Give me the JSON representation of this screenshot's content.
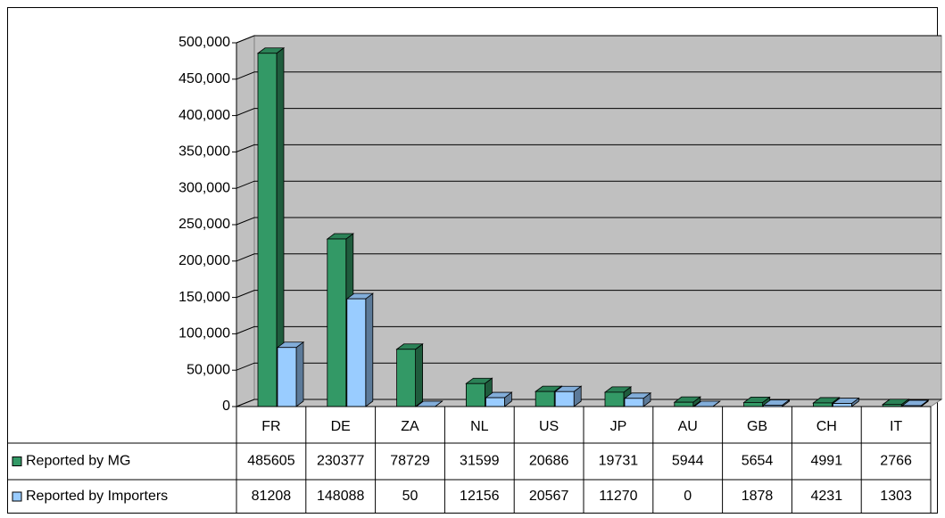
{
  "chart_data": {
    "type": "bar3d",
    "categories": [
      "FR",
      "DE",
      "ZA",
      "NL",
      "US",
      "JP",
      "AU",
      "GB",
      "CH",
      "IT"
    ],
    "series": [
      {
        "name": "Reported by MG",
        "color": "#339966",
        "values": [
          485605,
          230377,
          78729,
          31599,
          20686,
          19731,
          5944,
          5654,
          4991,
          2766
        ]
      },
      {
        "name": "Reported by Importers",
        "color": "#99ccff",
        "values": [
          81208,
          148088,
          50,
          12156,
          20567,
          11270,
          0,
          1878,
          4231,
          1303
        ]
      }
    ],
    "ylim": [
      0,
      500000
    ],
    "yticks": [
      0,
      {
        "value": 50000,
        "label": "50,000"
      },
      {
        "value": 100000,
        "label": "100,000"
      },
      {
        "value": 150000,
        "label": "150,000"
      },
      {
        "value": 200000,
        "label": "200,000"
      },
      {
        "value": 250000,
        "label": "250,000"
      },
      {
        "value": 300000,
        "label": "300,000"
      },
      {
        "value": 350000,
        "label": "350,000"
      },
      {
        "value": 400000,
        "label": "400,000"
      },
      {
        "value": 450000,
        "label": "450,000"
      },
      {
        "value": 500000,
        "label": "500,000"
      }
    ],
    "grid": true,
    "legend": "table"
  }
}
